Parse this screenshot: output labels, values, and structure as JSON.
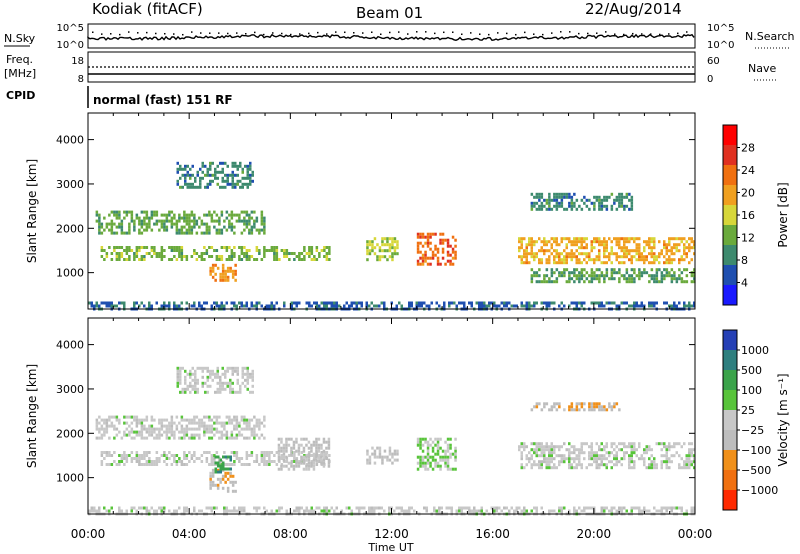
{
  "header": {
    "station": "Kodiak (fitACF)",
    "beam": "Beam 01",
    "date": "22/Aug/2014"
  },
  "strip_labels": {
    "nsky": "N.Sky",
    "nsearch": "N.Search",
    "freq_line1": "Freq.",
    "freq_line2": "[MHz]",
    "nave": "Nave",
    "cpid": "CPID",
    "cpid_value": "normal (fast) 151 RF",
    "noise_ticks_left": [
      "10^5",
      "10^0"
    ],
    "noise_ticks_right": [
      "10^5",
      "10^0"
    ],
    "freq_ticks_left": [
      "18",
      "8"
    ],
    "freq_ticks_right": [
      "60",
      "0"
    ]
  },
  "colors": {
    "power_scale": [
      "#1a1aff",
      "#1f4fb0",
      "#3d8a6e",
      "#6aaa3c",
      "#d7d73a",
      "#f0a020",
      "#f07010",
      "#e03020",
      "#ff0000"
    ],
    "velocity_scale": [
      "#2540b5",
      "#2e7f7f",
      "#3aa34a",
      "#58c43a",
      "#c8c8c8",
      "#bdbdbd",
      "#f0901a",
      "#f07010",
      "#ff2a00"
    ]
  },
  "chart_data": [
    {
      "type": "heatmap",
      "title": "",
      "xlabel": "Time UT",
      "ylabel": "Slant Range [km]",
      "x_ticks": [
        "00:00",
        "04:00",
        "08:00",
        "12:00",
        "16:00",
        "20:00",
        "00:00"
      ],
      "y_ticks": [
        "1000",
        "2000",
        "3000",
        "4000"
      ],
      "ylim": [
        180,
        4600
      ],
      "colorbar": {
        "label": "Power [dB]",
        "ticks": [
          "4",
          "8",
          "12",
          "16",
          "20",
          "24",
          "28"
        ],
        "range": [
          0,
          30
        ]
      },
      "echo_regions": [
        {
          "t": [
            0.5,
            9.5
          ],
          "r": [
            1300,
            1600
          ],
          "value": 12
        },
        {
          "t": [
            0.3,
            7.0
          ],
          "r": [
            1900,
            2400
          ],
          "value": 11
        },
        {
          "t": [
            3.5,
            6.5
          ],
          "r": [
            2900,
            3500
          ],
          "value": 8
        },
        {
          "t": [
            4.8,
            5.8
          ],
          "r": [
            800,
            1200
          ],
          "value": 20
        },
        {
          "t": [
            11.0,
            12.2
          ],
          "r": [
            1300,
            1800
          ],
          "value": 14
        },
        {
          "t": [
            13.0,
            14.5
          ],
          "r": [
            1200,
            1900
          ],
          "value": 22
        },
        {
          "t": [
            17.0,
            24.0
          ],
          "r": [
            1200,
            1800
          ],
          "value": 18
        },
        {
          "t": [
            17.5,
            24.0
          ],
          "r": [
            800,
            1100
          ],
          "value": 10
        },
        {
          "t": [
            17.5,
            21.5
          ],
          "r": [
            2400,
            2800
          ],
          "value": 8
        },
        {
          "t": [
            0.0,
            24.0
          ],
          "r": [
            180,
            350
          ],
          "value": 6
        }
      ]
    },
    {
      "type": "heatmap",
      "title": "",
      "xlabel": "Time UT",
      "ylabel": "Slant Range [km]",
      "x_ticks": [
        "00:00",
        "04:00",
        "08:00",
        "12:00",
        "16:00",
        "20:00",
        "00:00"
      ],
      "y_ticks": [
        "1000",
        "2000",
        "3000",
        "4000"
      ],
      "ylim": [
        180,
        4600
      ],
      "colorbar": {
        "label": "Velocity [m s⁻¹]",
        "ticks": [
          "1000",
          "500",
          "100",
          "25",
          "−25",
          "−100",
          "−500",
          "−1000"
        ],
        "range": [
          -1200,
          1200
        ]
      },
      "echo_regions": [
        {
          "t": [
            0.5,
            9.5
          ],
          "r": [
            1300,
            1600
          ],
          "value": 0
        },
        {
          "t": [
            0.3,
            7.0
          ],
          "r": [
            1900,
            2400
          ],
          "value": 0
        },
        {
          "t": [
            3.5,
            6.5
          ],
          "r": [
            2900,
            3500
          ],
          "value": 0
        },
        {
          "t": [
            4.8,
            5.8
          ],
          "r": [
            700,
            1200
          ],
          "value": -300
        },
        {
          "t": [
            5.0,
            5.6
          ],
          "r": [
            1100,
            1500
          ],
          "value": 600
        },
        {
          "t": [
            7.5,
            9.5
          ],
          "r": [
            1200,
            1900
          ],
          "value": -200
        },
        {
          "t": [
            11.0,
            12.2
          ],
          "r": [
            1300,
            1700
          ],
          "value": -150
        },
        {
          "t": [
            13.0,
            14.5
          ],
          "r": [
            1200,
            1900
          ],
          "value": 150
        },
        {
          "t": [
            17.0,
            24.0
          ],
          "r": [
            1200,
            1800
          ],
          "value": 0
        },
        {
          "t": [
            17.5,
            21.0
          ],
          "r": [
            2550,
            2700
          ],
          "value": -300
        },
        {
          "t": [
            0.0,
            24.0
          ],
          "r": [
            180,
            350
          ],
          "value": 0
        }
      ]
    }
  ]
}
